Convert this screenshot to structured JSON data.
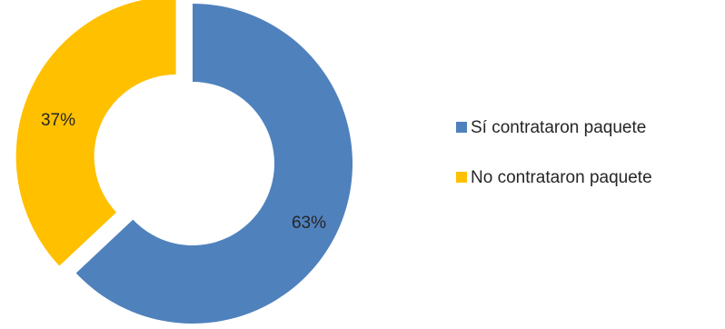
{
  "chart_data": {
    "type": "pie",
    "donut": true,
    "title": "",
    "categories": [
      "Sí contrataron paquete",
      "No contrataron paquete"
    ],
    "values": [
      63,
      37
    ],
    "data_labels": [
      "63%",
      "37%"
    ],
    "colors": [
      "#4F81BD",
      "#FFC000"
    ],
    "exploded": "No contrataron paquete",
    "legend_position": "right"
  },
  "legend": {
    "items": [
      {
        "label": "Sí contrataron paquete",
        "color": "#4F81BD"
      },
      {
        "label": "No contrataron paquete",
        "color": "#FFC000"
      }
    ]
  }
}
